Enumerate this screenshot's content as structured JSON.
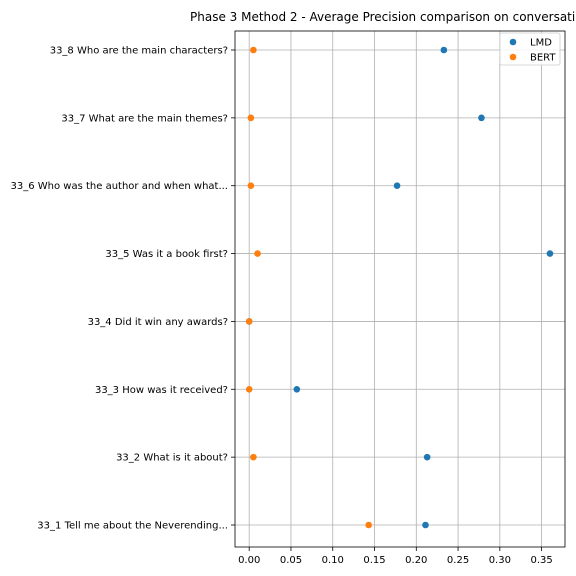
{
  "chart_data": {
    "type": "scatter",
    "title": "Phase 3 Method 2 - Average Precision comparison on conversati",
    "xlabel": "",
    "ylabel": "",
    "xlim": [
      -0.017,
      0.378
    ],
    "xticks": [
      "0.00",
      "0.05",
      "0.10",
      "0.15",
      "0.20",
      "0.25",
      "0.30",
      "0.35"
    ],
    "grid": true,
    "legend_position": "top-right",
    "categories": [
      "33_1 Tell me about the Neverending...",
      "33_2 What is it about?",
      "33_3 How was it received?",
      "33_4 Did it win any awards?",
      "33_5 Was it a book first?",
      "33_6 Who was the author and when what...",
      "33_7 What are the main themes?",
      "33_8 Who are the main characters?"
    ],
    "series": [
      {
        "name": "LMD",
        "color": "#1f77b4",
        "values": [
          0.211,
          0.213,
          0.057,
          0.0,
          0.36,
          0.177,
          0.278,
          0.233
        ]
      },
      {
        "name": "BERT",
        "color": "#ff7f0e",
        "values": [
          0.143,
          0.005,
          0.0,
          0.0,
          0.01,
          0.002,
          0.002,
          0.005
        ]
      }
    ]
  }
}
